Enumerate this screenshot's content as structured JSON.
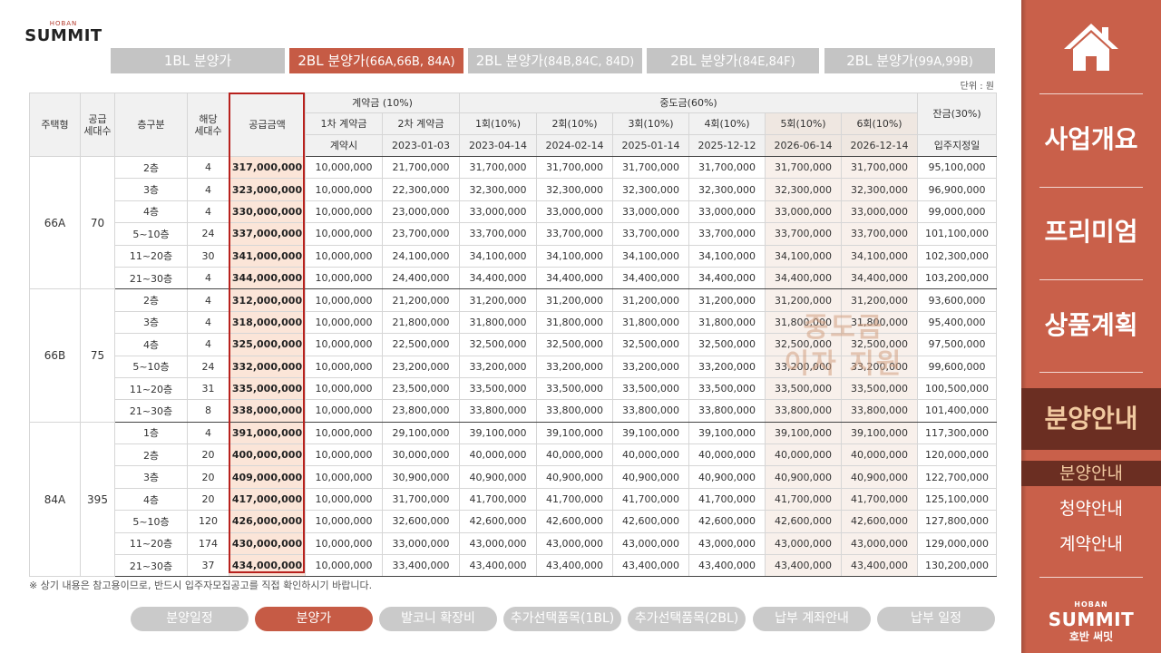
{
  "logo_top": {
    "small": "HOBAN",
    "big": "SUMMIT"
  },
  "top_tabs": [
    {
      "label": "1BL 분양가",
      "paren": "",
      "active": false
    },
    {
      "label": "2BL 분양가",
      "paren": "(66A,66B, 84A)",
      "active": true
    },
    {
      "label": "2BL 분양가",
      "paren": "(84B,84C, 84D)",
      "active": false
    },
    {
      "label": "2BL 분양가",
      "paren": "(84E,84F)",
      "active": false
    },
    {
      "label": "2BL 분양가",
      "paren": "(99A,99B)",
      "active": false
    }
  ],
  "unit": "단위 : 원",
  "table": {
    "headers": {
      "type": "주택형",
      "supply": "공급\n세대수",
      "floor": "층구분",
      "units": "해당\n세대수",
      "price": "공급금액",
      "deposit": "계약금 (10%)",
      "deposit_1": "1차 계약금",
      "deposit_2": "2차 계약금",
      "deposit_1_date": "계약시",
      "deposit_2_date": "2023-01-03",
      "middle": "중도금(60%)",
      "middle_rounds": [
        "1회(10%)",
        "2회(10%)",
        "3회(10%)",
        "4회(10%)",
        "5회(10%)",
        "6회(10%)"
      ],
      "middle_dates": [
        "2023-04-14",
        "2024-02-14",
        "2025-01-14",
        "2025-12-12",
        "2026-06-14",
        "2026-12-14"
      ],
      "balance": "잔금(30%)",
      "balance_date": "입주지정일"
    },
    "groups": [
      {
        "type": "66A",
        "supply": "70",
        "rows": [
          [
            "2층",
            "4",
            "317,000,000",
            "10,000,000",
            "21,700,000",
            "31,700,000",
            "31,700,000",
            "31,700,000",
            "31,700,000",
            "31,700,000",
            "31,700,000",
            "95,100,000"
          ],
          [
            "3층",
            "4",
            "323,000,000",
            "10,000,000",
            "22,300,000",
            "32,300,000",
            "32,300,000",
            "32,300,000",
            "32,300,000",
            "32,300,000",
            "32,300,000",
            "96,900,000"
          ],
          [
            "4층",
            "4",
            "330,000,000",
            "10,000,000",
            "23,000,000",
            "33,000,000",
            "33,000,000",
            "33,000,000",
            "33,000,000",
            "33,000,000",
            "33,000,000",
            "99,000,000"
          ],
          [
            "5~10층",
            "24",
            "337,000,000",
            "10,000,000",
            "23,700,000",
            "33,700,000",
            "33,700,000",
            "33,700,000",
            "33,700,000",
            "33,700,000",
            "33,700,000",
            "101,100,000"
          ],
          [
            "11~20층",
            "30",
            "341,000,000",
            "10,000,000",
            "24,100,000",
            "34,100,000",
            "34,100,000",
            "34,100,000",
            "34,100,000",
            "34,100,000",
            "34,100,000",
            "102,300,000"
          ],
          [
            "21~30층",
            "4",
            "344,000,000",
            "10,000,000",
            "24,400,000",
            "34,400,000",
            "34,400,000",
            "34,400,000",
            "34,400,000",
            "34,400,000",
            "34,400,000",
            "103,200,000"
          ]
        ]
      },
      {
        "type": "66B",
        "supply": "75",
        "rows": [
          [
            "2층",
            "4",
            "312,000,000",
            "10,000,000",
            "21,200,000",
            "31,200,000",
            "31,200,000",
            "31,200,000",
            "31,200,000",
            "31,200,000",
            "31,200,000",
            "93,600,000"
          ],
          [
            "3층",
            "4",
            "318,000,000",
            "10,000,000",
            "21,800,000",
            "31,800,000",
            "31,800,000",
            "31,800,000",
            "31,800,000",
            "31,800,000",
            "31,800,000",
            "95,400,000"
          ],
          [
            "4층",
            "4",
            "325,000,000",
            "10,000,000",
            "22,500,000",
            "32,500,000",
            "32,500,000",
            "32,500,000",
            "32,500,000",
            "32,500,000",
            "32,500,000",
            "97,500,000"
          ],
          [
            "5~10층",
            "24",
            "332,000,000",
            "10,000,000",
            "23,200,000",
            "33,200,000",
            "33,200,000",
            "33,200,000",
            "33,200,000",
            "33,200,000",
            "33,200,000",
            "99,600,000"
          ],
          [
            "11~20층",
            "31",
            "335,000,000",
            "10,000,000",
            "23,500,000",
            "33,500,000",
            "33,500,000",
            "33,500,000",
            "33,500,000",
            "33,500,000",
            "33,500,000",
            "100,500,000"
          ],
          [
            "21~30층",
            "8",
            "338,000,000",
            "10,000,000",
            "23,800,000",
            "33,800,000",
            "33,800,000",
            "33,800,000",
            "33,800,000",
            "33,800,000",
            "33,800,000",
            "101,400,000"
          ]
        ]
      },
      {
        "type": "84A",
        "supply": "395",
        "rows": [
          [
            "1층",
            "4",
            "391,000,000",
            "10,000,000",
            "29,100,000",
            "39,100,000",
            "39,100,000",
            "39,100,000",
            "39,100,000",
            "39,100,000",
            "39,100,000",
            "117,300,000"
          ],
          [
            "2층",
            "20",
            "400,000,000",
            "10,000,000",
            "30,000,000",
            "40,000,000",
            "40,000,000",
            "40,000,000",
            "40,000,000",
            "40,000,000",
            "40,000,000",
            "120,000,000"
          ],
          [
            "3층",
            "20",
            "409,000,000",
            "10,000,000",
            "30,900,000",
            "40,900,000",
            "40,900,000",
            "40,900,000",
            "40,900,000",
            "40,900,000",
            "40,900,000",
            "122,700,000"
          ],
          [
            "4층",
            "20",
            "417,000,000",
            "10,000,000",
            "31,700,000",
            "41,700,000",
            "41,700,000",
            "41,700,000",
            "41,700,000",
            "41,700,000",
            "41,700,000",
            "125,100,000"
          ],
          [
            "5~10층",
            "120",
            "426,000,000",
            "10,000,000",
            "32,600,000",
            "42,600,000",
            "42,600,000",
            "42,600,000",
            "42,600,000",
            "42,600,000",
            "42,600,000",
            "127,800,000"
          ],
          [
            "11~20층",
            "174",
            "430,000,000",
            "10,000,000",
            "33,000,000",
            "43,000,000",
            "43,000,000",
            "43,000,000",
            "43,000,000",
            "43,000,000",
            "43,000,000",
            "129,000,000"
          ],
          [
            "21~30층",
            "37",
            "434,000,000",
            "10,000,000",
            "33,400,000",
            "43,400,000",
            "43,400,000",
            "43,400,000",
            "43,400,000",
            "43,400,000",
            "43,400,000",
            "130,200,000"
          ]
        ]
      }
    ]
  },
  "watermark": [
    "중도금",
    "이자 지원"
  ],
  "note": "※ 상기 내용은 참고용이므로, 반드시 입주자모집공고를 직접 확인하시기 바랍니다.",
  "bottom_tabs": [
    {
      "label": "분양일정",
      "active": false
    },
    {
      "label": "분양가",
      "active": true
    },
    {
      "label": "발코니 확장비",
      "active": false
    },
    {
      "label": "추가선택품목(1BL)",
      "active": false
    },
    {
      "label": "추가선택품목(2BL)",
      "active": false
    },
    {
      "label": "납부 계좌안내",
      "active": false
    },
    {
      "label": "납부 일정",
      "active": false
    }
  ],
  "sidebar": {
    "menu": [
      {
        "label": "사업개요",
        "active": false
      },
      {
        "label": "프리미엄",
        "active": false
      },
      {
        "label": "상품계획",
        "active": false
      },
      {
        "label": "분양안내",
        "active": true
      }
    ],
    "sub": [
      {
        "label": "분양안내",
        "active": true
      },
      {
        "label": "청약안내",
        "active": false
      },
      {
        "label": "계약안내",
        "active": false
      }
    ],
    "logo": {
      "small": "HOBAN",
      "big": "SUMMIT",
      "kr": "호반 써밋"
    }
  },
  "colors": {
    "accent": "#c65b45",
    "sidebar": "#c9604a",
    "active_menu_bg": "#6b2e22",
    "price_highlight": "#fbe5d8",
    "price_box_border": "#b8211d"
  }
}
